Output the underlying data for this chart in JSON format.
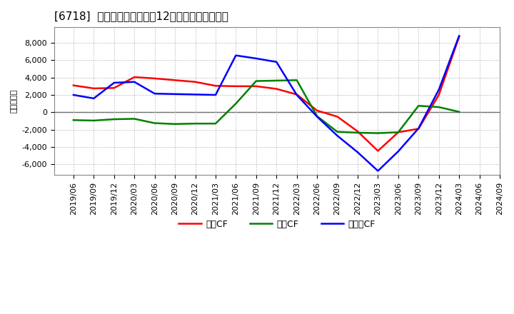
{
  "title": "[6718]  キャッシュフローの12か月移動合計の推移",
  "ylabel": "（百万円）",
  "ylim": [
    -7200,
    9800
  ],
  "yticks": [
    -6000,
    -4000,
    -2000,
    0,
    2000,
    4000,
    6000,
    8000
  ],
  "background_color": "#ffffff",
  "plot_bg_color": "#ffffff",
  "x_labels": [
    "2019/06",
    "2019/09",
    "2019/12",
    "2020/03",
    "2020/06",
    "2020/09",
    "2020/12",
    "2021/03",
    "2021/06",
    "2021/09",
    "2021/12",
    "2022/03",
    "2022/06",
    "2022/09",
    "2022/12",
    "2023/03",
    "2023/06",
    "2023/09",
    "2023/12",
    "2024/03",
    "2024/06",
    "2024/09"
  ],
  "営業CF": [
    3100,
    2750,
    2800,
    4050,
    3900,
    3700,
    3500,
    3050,
    3000,
    3000,
    2700,
    2050,
    200,
    -500,
    -2200,
    -4450,
    -2300,
    -1900,
    2000,
    8700,
    null,
    null
  ],
  "投資CF": [
    -900,
    -950,
    -800,
    -750,
    -1250,
    -1350,
    -1300,
    -1300,
    1000,
    3600,
    3650,
    3700,
    -450,
    -2250,
    -2350,
    -2400,
    -2300,
    750,
    600,
    50,
    null,
    null
  ],
  "フリーCF": [
    2000,
    1600,
    3400,
    3500,
    2150,
    2100,
    2050,
    2000,
    6550,
    6200,
    5800,
    2000,
    -500,
    -2700,
    -4600,
    -6750,
    -4500,
    -1850,
    2600,
    8800,
    null,
    null
  ],
  "series_names": [
    "営業CF",
    "投資CF",
    "フリーCF"
  ],
  "legend_labels": [
    "営業CF",
    "投資CF",
    "フリーCF"
  ],
  "line_colors": {
    "営業CF": "#ff0000",
    "投資CF": "#008000",
    "フリーCF": "#0000ff"
  },
  "line_width": 1.8,
  "grid_color": "#aaaaaa",
  "grid_linestyle": ":",
  "zero_line_color": "#555555",
  "title_fontsize": 11,
  "ylabel_fontsize": 8,
  "tick_fontsize": 8,
  "legend_fontsize": 9
}
